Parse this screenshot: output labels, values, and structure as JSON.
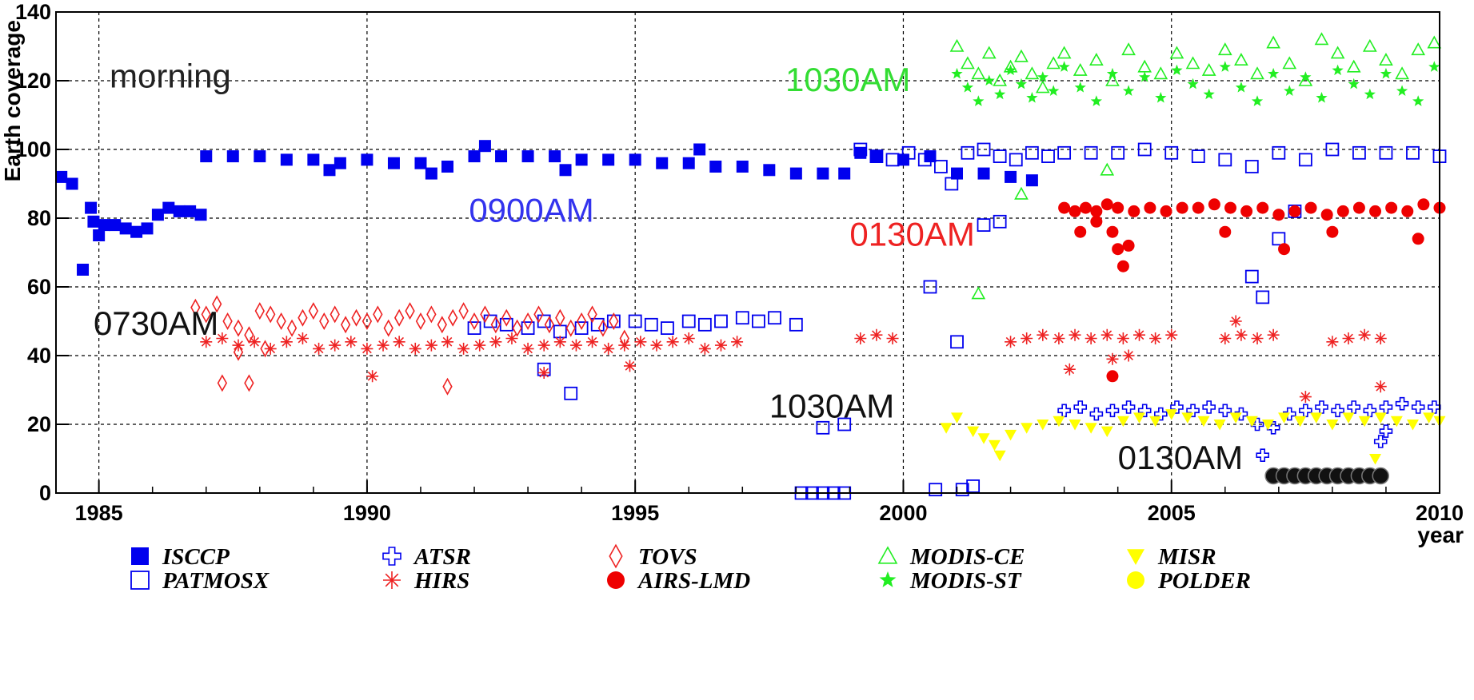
{
  "chart_data": {
    "type": "scatter",
    "title": "",
    "xlabel": "year",
    "ylabel": "Earth coverage",
    "xlim": [
      1984.2,
      2010
    ],
    "ylim": [
      0,
      140
    ],
    "x_ticks": [
      "1985",
      "1990",
      "1995",
      "2000",
      "2005",
      "2010"
    ],
    "y_ticks": [
      "0",
      "20",
      "40",
      "60",
      "80",
      "100",
      "120",
      "140"
    ],
    "grid": true,
    "legend_position": "bottom",
    "annotations": [
      {
        "text": "morning",
        "x": 1985.2,
        "y": 118,
        "color": "#222222"
      },
      {
        "text": "1030AM",
        "x": 1997.8,
        "y": 117,
        "color": "#33dd33"
      },
      {
        "text": "0900AM",
        "x": 1991.9,
        "y": 79,
        "color": "#3333ee"
      },
      {
        "text": "0130AM",
        "x": 1999.0,
        "y": 72,
        "color": "#ee2222"
      },
      {
        "text": "0730AM",
        "x": 1984.9,
        "y": 46,
        "color": "#111111"
      },
      {
        "text": "1030AM",
        "x": 1997.5,
        "y": 22,
        "color": "#111111"
      },
      {
        "text": "0130AM",
        "x": 2004.0,
        "y": 7,
        "color": "#111111"
      }
    ],
    "series": [
      {
        "name": "ISCCP",
        "marker": "square-filled",
        "color": "#0000ee",
        "x": [
          1984.3,
          1984.5,
          1984.7,
          1984.85,
          1985.0,
          1985.1,
          1985.3,
          1985.5,
          1985.7,
          1985.9,
          1986.1,
          1986.3,
          1986.5,
          1986.7,
          1986.9,
          1987.0,
          1987.5,
          1988.0,
          1988.5,
          1989.0,
          1989.5,
          1990.0,
          1990.5,
          1991.0,
          1991.5,
          1992.0,
          1992.5,
          1993.0,
          1993.5,
          1994.0,
          1994.5,
          1995.0,
          1995.5,
          1996.0,
          1996.5,
          1997.0,
          1997.5,
          1998.0,
          1998.5,
          1998.9,
          1999.2,
          1999.5,
          2000.0,
          2000.5,
          2001.0,
          2001.5,
          2002.0,
          2002.4,
          1984.9,
          1991.2,
          1992.2,
          1993.7,
          1996.2,
          1989.3
        ],
        "y": [
          92,
          90,
          65,
          83,
          75,
          78,
          78,
          77,
          76,
          77,
          81,
          83,
          82,
          82,
          81,
          98,
          98,
          98,
          97,
          97,
          96,
          97,
          96,
          96,
          95,
          98,
          98,
          98,
          98,
          97,
          97,
          97,
          96,
          96,
          95,
          95,
          94,
          93,
          93,
          93,
          99,
          98,
          97,
          98,
          93,
          93,
          92,
          91,
          79,
          93,
          101,
          94,
          100,
          94
        ]
      },
      {
        "name": "PATMOSX",
        "marker": "square-open",
        "color": "#0000ee",
        "x": [
          1992.0,
          1992.3,
          1992.6,
          1993.0,
          1993.3,
          1993.6,
          1994.0,
          1994.3,
          1994.6,
          1995.0,
          1995.3,
          1995.6,
          1996.0,
          1996.3,
          1996.6,
          1997.0,
          1997.3,
          1997.6,
          1998.0,
          1993.3,
          1993.8,
          1998.1,
          1998.3,
          1998.5,
          1998.7,
          1998.9,
          1999.2,
          1999.5,
          1999.8,
          2000.1,
          2000.4,
          2000.7,
          2000.9,
          2001.2,
          2001.5,
          2001.8,
          2002.1,
          2002.4,
          2002.7,
          2003.0,
          2003.5,
          2004.0,
          2004.5,
          2005.0,
          2005.5,
          2006.0,
          2006.5,
          2007.0,
          2007.5,
          2008.0,
          2008.5,
          2009.0,
          2009.5,
          2010.0,
          2001.5,
          2001.8,
          2000.5,
          2001.0,
          2006.5,
          2006.7,
          2007.0,
          2007.3,
          2000.6,
          2001.1,
          2001.3,
          1998.5,
          1998.9
        ],
        "y": [
          48,
          50,
          49,
          48,
          50,
          47,
          48,
          49,
          50,
          50,
          49,
          48,
          50,
          49,
          50,
          51,
          50,
          51,
          49,
          36,
          29,
          0,
          0,
          0,
          0,
          0,
          100,
          98,
          97,
          99,
          97,
          95,
          90,
          99,
          100,
          98,
          97,
          99,
          98,
          99,
          99,
          99,
          100,
          99,
          98,
          97,
          95,
          99,
          97,
          100,
          99,
          99,
          99,
          98,
          78,
          79,
          60,
          44,
          63,
          57,
          74,
          82,
          1,
          1,
          2,
          19,
          20
        ]
      },
      {
        "name": "ATSR",
        "marker": "cross-open",
        "color": "#0000ee",
        "x": [
          2003.0,
          2003.3,
          2003.6,
          2003.9,
          2004.2,
          2004.5,
          2004.8,
          2005.1,
          2005.4,
          2005.7,
          2006.0,
          2006.3,
          2006.6,
          2006.9,
          2007.2,
          2007.5,
          2007.8,
          2008.1,
          2008.4,
          2008.7,
          2009.0,
          2009.3,
          2009.6,
          2009.9,
          2006.7,
          2008.9,
          2009.0
        ],
        "y": [
          24,
          25,
          23,
          24,
          25,
          24,
          23,
          25,
          24,
          25,
          24,
          23,
          20,
          19,
          23,
          24,
          25,
          24,
          25,
          24,
          25,
          26,
          25,
          25,
          11,
          15,
          18
        ]
      },
      {
        "name": "HIRS",
        "marker": "asterisk",
        "color": "#ee2222",
        "x": [
          1987.0,
          1987.3,
          1987.6,
          1987.9,
          1988.2,
          1988.5,
          1988.8,
          1989.1,
          1989.4,
          1989.7,
          1990.0,
          1990.3,
          1990.6,
          1990.9,
          1991.2,
          1991.5,
          1991.8,
          1992.1,
          1992.4,
          1992.7,
          1993.0,
          1993.3,
          1993.6,
          1993.9,
          1994.2,
          1994.5,
          1994.8,
          1995.1,
          1995.4,
          1995.7,
          1996.0,
          1996.3,
          1996.6,
          1996.9,
          1999.2,
          1999.5,
          1999.8,
          2002.0,
          2002.3,
          2002.6,
          2002.9,
          2003.2,
          2003.5,
          2003.8,
          2004.1,
          2004.4,
          2004.7,
          2005.0,
          2006.0,
          2006.3,
          2006.6,
          2006.9,
          2008.0,
          2008.3,
          2008.6,
          2008.9,
          1990.1,
          1993.3,
          1994.9,
          2003.1,
          2003.9,
          2004.2,
          2006.2,
          2007.5,
          2008.9
        ],
        "y": [
          44,
          45,
          43,
          44,
          42,
          44,
          45,
          42,
          43,
          44,
          42,
          43,
          44,
          42,
          43,
          44,
          42,
          43,
          44,
          45,
          42,
          43,
          44,
          43,
          44,
          42,
          43,
          44,
          43,
          44,
          45,
          42,
          43,
          44,
          45,
          46,
          45,
          44,
          45,
          46,
          45,
          46,
          45,
          46,
          45,
          46,
          45,
          46,
          45,
          46,
          45,
          46,
          44,
          45,
          46,
          45,
          34,
          35,
          37,
          36,
          39,
          40,
          50,
          28,
          31
        ]
      },
      {
        "name": "TOVS",
        "marker": "diamond-open",
        "color": "#ee2222",
        "x": [
          1986.8,
          1987.0,
          1987.2,
          1987.4,
          1987.6,
          1987.8,
          1988.0,
          1988.2,
          1988.4,
          1988.6,
          1988.8,
          1989.0,
          1989.2,
          1989.4,
          1989.6,
          1989.8,
          1990.0,
          1990.2,
          1990.4,
          1990.6,
          1990.8,
          1991.0,
          1991.2,
          1991.4,
          1991.6,
          1991.8,
          1992.0,
          1992.2,
          1992.4,
          1992.6,
          1992.8,
          1993.0,
          1993.2,
          1993.4,
          1993.6,
          1993.8,
          1994.0,
          1994.2,
          1994.4,
          1994.6,
          1994.8,
          1987.3,
          1987.8,
          1991.5,
          1987.6,
          1988.1
        ],
        "y": [
          54,
          52,
          55,
          50,
          48,
          46,
          53,
          52,
          50,
          48,
          51,
          53,
          50,
          52,
          49,
          51,
          50,
          52,
          48,
          51,
          53,
          50,
          52,
          49,
          51,
          53,
          50,
          52,
          49,
          51,
          48,
          50,
          52,
          49,
          51,
          48,
          50,
          52,
          48,
          50,
          45,
          32,
          32,
          31,
          41,
          42
        ]
      },
      {
        "name": "AIRS-LMD",
        "marker": "circle-filled",
        "color": "#ee0000",
        "x": [
          2003.0,
          2003.2,
          2003.4,
          2003.6,
          2003.8,
          2004.0,
          2004.3,
          2004.6,
          2004.9,
          2005.2,
          2005.5,
          2005.8,
          2006.1,
          2006.4,
          2006.7,
          2007.0,
          2007.3,
          2007.6,
          2007.9,
          2008.2,
          2008.5,
          2008.8,
          2009.1,
          2009.4,
          2009.7,
          2010.0,
          2003.3,
          2003.6,
          2003.9,
          2004.0,
          2004.2,
          2004.1,
          2003.9,
          2006.0,
          2007.1,
          2008.0,
          2009.6
        ],
        "y": [
          83,
          82,
          83,
          82,
          84,
          83,
          82,
          83,
          82,
          83,
          83,
          84,
          83,
          82,
          83,
          81,
          82,
          83,
          81,
          82,
          83,
          82,
          83,
          82,
          84,
          83,
          76,
          79,
          76,
          71,
          72,
          66,
          34,
          76,
          71,
          76,
          74
        ]
      },
      {
        "name": "MODIS-CE",
        "marker": "triangle-up-open",
        "color": "#22ee22",
        "x": [
          2001.0,
          2001.2,
          2001.4,
          2001.6,
          2001.8,
          2002.0,
          2002.2,
          2002.4,
          2002.6,
          2002.8,
          2003.0,
          2003.3,
          2003.6,
          2003.9,
          2004.2,
          2004.5,
          2004.8,
          2005.1,
          2005.4,
          2005.7,
          2006.0,
          2006.3,
          2006.6,
          2006.9,
          2007.2,
          2007.5,
          2007.8,
          2008.1,
          2008.4,
          2008.7,
          2009.0,
          2009.3,
          2009.6,
          2009.9,
          2001.4,
          2002.2,
          2003.8
        ],
        "y": [
          130,
          125,
          122,
          128,
          120,
          124,
          127,
          122,
          118,
          125,
          128,
          123,
          126,
          120,
          129,
          124,
          122,
          128,
          125,
          123,
          129,
          126,
          122,
          131,
          125,
          120,
          132,
          128,
          124,
          130,
          126,
          122,
          129,
          131,
          58,
          87,
          94
        ]
      },
      {
        "name": "MODIS-ST",
        "marker": "star-filled",
        "color": "#22ee22",
        "x": [
          2001.0,
          2001.2,
          2001.4,
          2001.6,
          2001.8,
          2002.0,
          2002.2,
          2002.4,
          2002.6,
          2002.8,
          2003.0,
          2003.3,
          2003.6,
          2003.9,
          2004.2,
          2004.5,
          2004.8,
          2005.1,
          2005.4,
          2005.7,
          2006.0,
          2006.3,
          2006.6,
          2006.9,
          2007.2,
          2007.5,
          2007.8,
          2008.1,
          2008.4,
          2008.7,
          2009.0,
          2009.3,
          2009.6,
          2009.9
        ],
        "y": [
          122,
          118,
          114,
          120,
          116,
          123,
          119,
          115,
          121,
          117,
          124,
          118,
          114,
          122,
          117,
          121,
          115,
          123,
          119,
          116,
          124,
          118,
          114,
          122,
          117,
          121,
          115,
          123,
          119,
          116,
          122,
          117,
          114,
          124
        ]
      },
      {
        "name": "MISR",
        "marker": "triangle-down-filled",
        "color": "#ffff00",
        "x": [
          2000.8,
          2001.0,
          2001.3,
          2001.5,
          2001.7,
          2001.8,
          2002.0,
          2002.3,
          2002.6,
          2002.9,
          2003.2,
          2003.5,
          2003.8,
          2004.1,
          2004.4,
          2004.7,
          2005.0,
          2005.3,
          2005.6,
          2005.9,
          2006.2,
          2006.5,
          2006.8,
          2007.1,
          2007.4,
          2007.7,
          2008.0,
          2008.3,
          2008.6,
          2008.9,
          2009.2,
          2009.5,
          2009.8,
          2010.0,
          2008.8
        ],
        "y": [
          19,
          22,
          18,
          16,
          14,
          11,
          17,
          19,
          20,
          21,
          20,
          19,
          18,
          21,
          22,
          21,
          23,
          22,
          21,
          20,
          22,
          21,
          20,
          22,
          21,
          22,
          20,
          22,
          21,
          22,
          21,
          20,
          22,
          21,
          10
        ]
      },
      {
        "name": "POLDER",
        "marker": "circle-filled",
        "color": "#ffff00",
        "x": [
          2006.9,
          2007.1,
          2007.3,
          2007.5,
          2007.7,
          2007.9,
          2008.1,
          2008.3,
          2008.5,
          2008.7,
          2008.9
        ],
        "y": [
          5,
          5,
          5,
          5,
          5,
          5,
          5,
          5,
          5,
          5,
          5
        ]
      }
    ]
  }
}
